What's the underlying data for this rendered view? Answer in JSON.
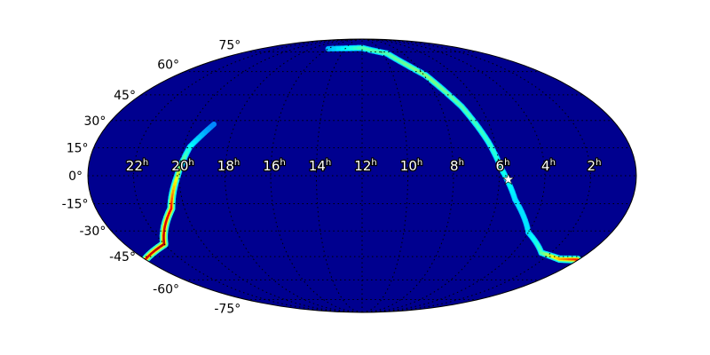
{
  "chart_data": {
    "type": "heatmap",
    "projection": "mollweide",
    "title": "",
    "colormap": "jet",
    "background_color": "#00008f",
    "grid": true,
    "dec_ticks": [
      {
        "value": 75,
        "label": "75°"
      },
      {
        "value": 60,
        "label": "60°"
      },
      {
        "value": 45,
        "label": "45°"
      },
      {
        "value": 30,
        "label": "30°"
      },
      {
        "value": 15,
        "label": "15°"
      },
      {
        "value": 0,
        "label": "0°"
      },
      {
        "value": -15,
        "label": "-15°"
      },
      {
        "value": -30,
        "label": "-30°"
      },
      {
        "value": -45,
        "label": "-45°"
      },
      {
        "value": -60,
        "label": "-60°"
      },
      {
        "value": -75,
        "label": "-75°"
      }
    ],
    "ra_ticks": [
      {
        "value": 22,
        "label": "22",
        "unit": "h"
      },
      {
        "value": 20,
        "label": "20",
        "unit": "h"
      },
      {
        "value": 18,
        "label": "18",
        "unit": "h"
      },
      {
        "value": 16,
        "label": "16",
        "unit": "h"
      },
      {
        "value": 14,
        "label": "14",
        "unit": "h"
      },
      {
        "value": 12,
        "label": "12",
        "unit": "h"
      },
      {
        "value": 10,
        "label": "10",
        "unit": "h"
      },
      {
        "value": 8,
        "label": "8",
        "unit": "h"
      },
      {
        "value": 6,
        "label": "6",
        "unit": "h"
      },
      {
        "value": 4,
        "label": "4",
        "unit": "h"
      },
      {
        "value": 2,
        "label": "2",
        "unit": "h"
      }
    ],
    "probability_arcs": [
      {
        "points": [
          {
            "ra": 16.0,
            "dec": 77.8,
            "p": 0.3
          },
          {
            "ra": 12.0,
            "dec": 78.6,
            "p": 0.45
          },
          {
            "ra": 9.6,
            "dec": 73.7,
            "p": 0.45
          },
          {
            "ra": 7.9,
            "dec": 57.4,
            "p": 0.5
          },
          {
            "ra": 6.95,
            "dec": 38.0,
            "p": 0.45
          },
          {
            "ra": 6.3,
            "dec": 18.2,
            "p": 0.42
          },
          {
            "ra": 5.9,
            "dec": 3.8,
            "p": 0.4
          },
          {
            "ra": 5.2,
            "dec": -12.8,
            "p": 0.35
          },
          {
            "ra": 4.0,
            "dec": -30.9,
            "p": 0.35
          },
          {
            "ra": 2.5,
            "dec": -42.7,
            "p": 0.45
          },
          {
            "ra": 1.1,
            "dec": -46.5,
            "p": 0.7
          },
          {
            "ra": 0.05,
            "dec": -46.8,
            "p": 0.85
          }
        ]
      },
      {
        "points": [
          {
            "ra": 23.95,
            "dec": -46.5,
            "p": 0.9
          },
          {
            "ra": 22.0,
            "dec": -37.5,
            "p": 0.95
          },
          {
            "ra": 20.6,
            "dec": -17.6,
            "p": 0.88
          },
          {
            "ra": 20.1,
            "dec": -0.8,
            "p": 0.6
          },
          {
            "ra": 19.7,
            "dec": 15.7,
            "p": 0.38
          },
          {
            "ra": 19.0,
            "dec": 27.9,
            "p": 0.25
          }
        ]
      }
    ],
    "marker": {
      "symbol": "star",
      "ra": 5.6,
      "dec": -2.0,
      "color": "#ffffff"
    }
  }
}
